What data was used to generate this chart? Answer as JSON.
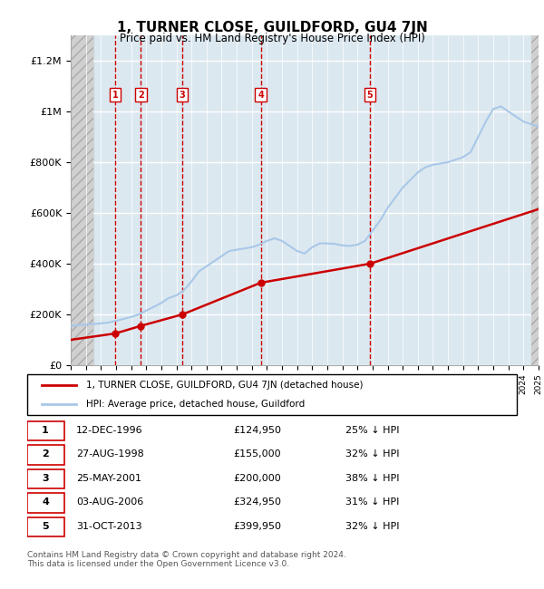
{
  "title": "1, TURNER CLOSE, GUILDFORD, GU4 7JN",
  "subtitle": "Price paid vs. HM Land Registry's House Price Index (HPI)",
  "footer": "Contains HM Land Registry data © Crown copyright and database right 2024.\nThis data is licensed under the Open Government Licence v3.0.",
  "legend_line1": "1, TURNER CLOSE, GUILDFORD, GU4 7JN (detached house)",
  "legend_line2": "HPI: Average price, detached house, Guildford",
  "hpi_color": "#a8c8e8",
  "price_color": "#cc0000",
  "sale_marker_color": "#cc0000",
  "vline_color": "#cc0000",
  "background_plot": "#dce8f0",
  "background_hatch_left": "#e8e8e8",
  "ylim": [
    0,
    1300000
  ],
  "yticks": [
    0,
    200000,
    400000,
    600000,
    800000,
    1000000,
    1200000
  ],
  "ytick_labels": [
    "£0",
    "£200K",
    "£400K",
    "£600K",
    "£800K",
    "£1M",
    "£1.2M"
  ],
  "sales": [
    {
      "num": 1,
      "date": "12-DEC-1996",
      "year": 1996.95,
      "price": 124950,
      "pct": "25%",
      "label": "12-DEC-1996",
      "price_label": "£124,950",
      "hpi_label": "25% ↓ HPI"
    },
    {
      "num": 2,
      "date": "27-AUG-1998",
      "year": 1998.65,
      "price": 155000,
      "pct": "32%",
      "label": "27-AUG-1998",
      "price_label": "£155,000",
      "hpi_label": "32% ↓ HPI"
    },
    {
      "num": 3,
      "date": "25-MAY-2001",
      "year": 2001.4,
      "price": 200000,
      "pct": "38%",
      "label": "25-MAY-2001",
      "price_label": "£200,000",
      "hpi_label": "38% ↓ HPI"
    },
    {
      "num": 4,
      "date": "03-AUG-2006",
      "year": 2006.59,
      "price": 324950,
      "pct": "31%",
      "label": "03-AUG-2006",
      "price_label": "£324,950",
      "hpi_label": "31% ↓ HPI"
    },
    {
      "num": 5,
      "date": "31-OCT-2013",
      "year": 2013.83,
      "price": 399950,
      "pct": "32%",
      "label": "31-OCT-2013",
      "price_label": "£399,950",
      "hpi_label": "32% ↓ HPI"
    }
  ],
  "hpi_data": {
    "years": [
      1994,
      1994.5,
      1995,
      1995.5,
      1996,
      1996.5,
      1997,
      1997.5,
      1998,
      1998.5,
      1999,
      1999.5,
      2000,
      2000.5,
      2001,
      2001.5,
      2002,
      2002.5,
      2003,
      2003.5,
      2004,
      2004.5,
      2005,
      2005.5,
      2006,
      2006.5,
      2007,
      2007.5,
      2008,
      2008.5,
      2009,
      2009.5,
      2010,
      2010.5,
      2011,
      2011.5,
      2012,
      2012.5,
      2013,
      2013.5,
      2014,
      2014.5,
      2015,
      2015.5,
      2016,
      2016.5,
      2017,
      2017.5,
      2018,
      2018.5,
      2019,
      2019.5,
      2020,
      2020.5,
      2021,
      2021.5,
      2022,
      2022.5,
      2023,
      2023.5,
      2024,
      2024.5,
      2025
    ],
    "values": [
      155000,
      158000,
      160000,
      162000,
      165000,
      168000,
      175000,
      182000,
      190000,
      200000,
      215000,
      230000,
      245000,
      265000,
      275000,
      295000,
      330000,
      370000,
      390000,
      410000,
      430000,
      450000,
      455000,
      460000,
      465000,
      475000,
      490000,
      500000,
      490000,
      470000,
      450000,
      440000,
      465000,
      480000,
      480000,
      478000,
      472000,
      470000,
      475000,
      490000,
      530000,
      570000,
      620000,
      660000,
      700000,
      730000,
      760000,
      780000,
      790000,
      795000,
      800000,
      810000,
      820000,
      840000,
      900000,
      960000,
      1010000,
      1020000,
      1000000,
      980000,
      960000,
      950000,
      940000
    ]
  },
  "price_line_data": {
    "years": [
      1994,
      1996.95,
      1998.65,
      2001.4,
      2006.59,
      2013.83,
      2025
    ],
    "values": [
      100000,
      124950,
      155000,
      200000,
      324950,
      399950,
      615000
    ]
  },
  "xmin": 1994,
  "xmax": 2025,
  "hatch_xmax": 1995.5
}
